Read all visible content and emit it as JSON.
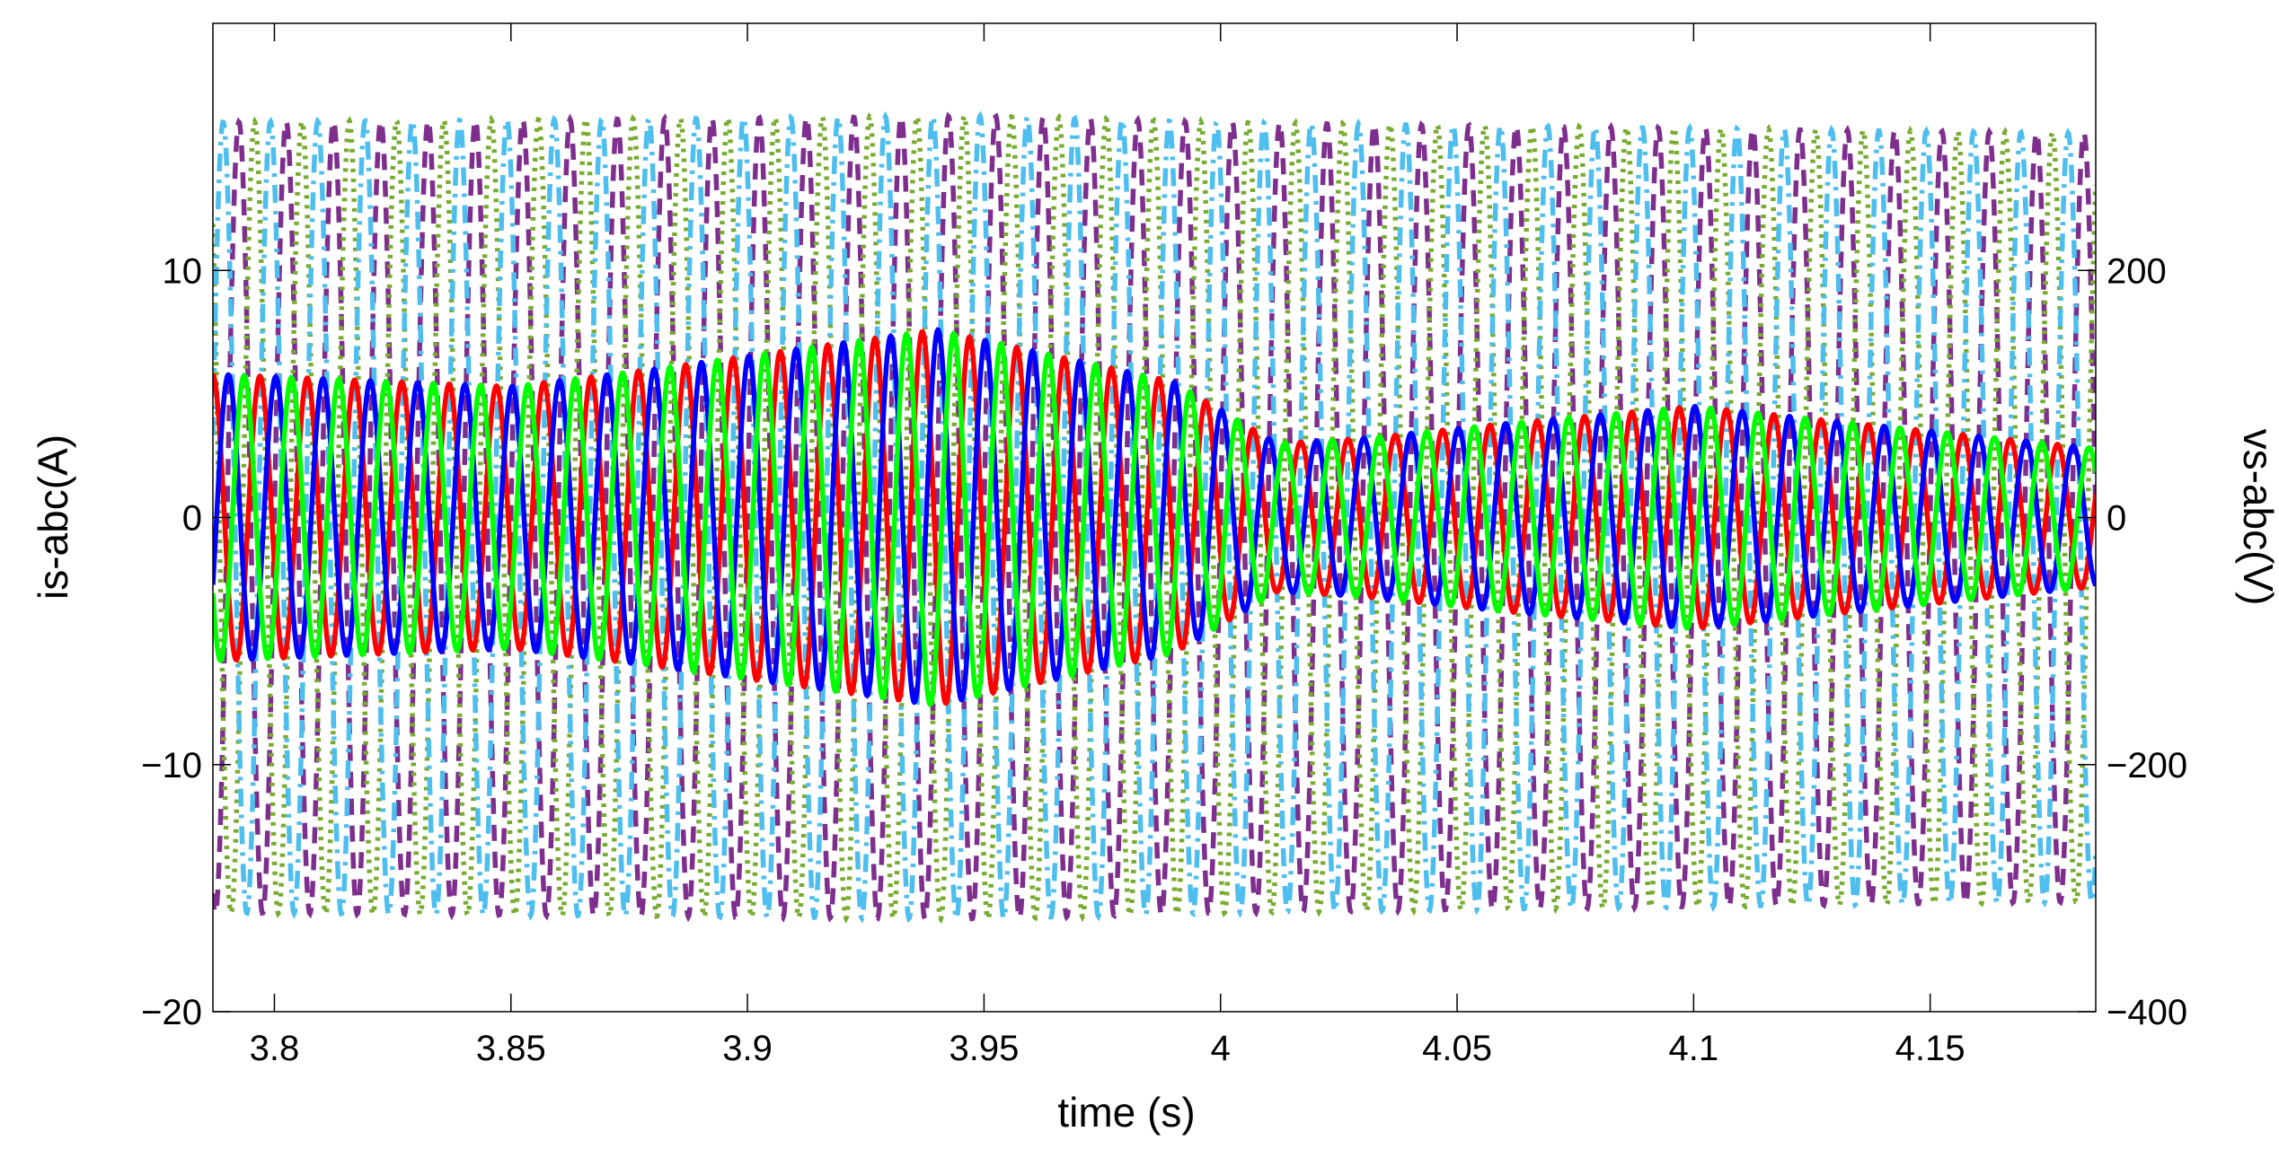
{
  "chart_data": {
    "type": "line",
    "title": "",
    "xlabel": "time (s)",
    "ylabel_left": "is-abc(A)",
    "ylabel_right": "vs-abc(V)",
    "xlim": [
      3.787,
      4.185
    ],
    "ylim_left": [
      -20,
      20
    ],
    "ylim_right": [
      -400,
      400
    ],
    "xticks": [
      3.8,
      3.85,
      3.9,
      3.95,
      4,
      4.05,
      4.1,
      4.15
    ],
    "xtick_labels": [
      "3.8",
      "3.85",
      "3.9",
      "3.95",
      "4",
      "4.05",
      "4.1",
      "4.15"
    ],
    "yticks_left": [
      -20,
      -10,
      0,
      10
    ],
    "ytick_labels_left": [
      "−20",
      "−10",
      "0",
      "10"
    ],
    "yticks_right": [
      -400,
      -200,
      0,
      200
    ],
    "ytick_labels_right": [
      "−400",
      "−200",
      "0",
      "200"
    ],
    "grid": false,
    "legend": "none",
    "frequency_hz": 100,
    "voltage_series": [
      {
        "axis": "right",
        "phase_deg": 0,
        "style": "dash",
        "color": "#7E2F8E",
        "amplitude_envelope": {
          "t": [
            3.787,
            3.95,
            4.0,
            4.185
          ],
          "value": [
            320,
            325,
            320,
            311
          ]
        }
      },
      {
        "axis": "right",
        "phase_deg": -120,
        "style": "dot",
        "color": "#77AC30",
        "amplitude_envelope": {
          "t": [
            3.787,
            3.95,
            4.0,
            4.185
          ],
          "value": [
            320,
            325,
            320,
            311
          ]
        }
      },
      {
        "axis": "right",
        "phase_deg": 120,
        "style": "dashdot",
        "color": "#4DBEEE",
        "amplitude_envelope": {
          "t": [
            3.787,
            3.95,
            4.0,
            4.185
          ],
          "value": [
            320,
            325,
            320,
            311
          ]
        }
      }
    ],
    "current_series": [
      {
        "axis": "left",
        "phase_deg": 200,
        "style": "solid",
        "color": "#FF0000",
        "amplitude_envelope": {
          "t": [
            3.787,
            3.85,
            3.88,
            3.94,
            3.99,
            4.012,
            4.03,
            4.06,
            4.1,
            4.185
          ],
          "value": [
            5.8,
            5.3,
            6.0,
            7.6,
            5.5,
            3.0,
            3.2,
            3.8,
            4.5,
            2.8
          ]
        }
      },
      {
        "axis": "left",
        "phase_deg": 80,
        "style": "solid",
        "color": "#0000FF",
        "amplitude_envelope": {
          "t": [
            3.787,
            3.85,
            3.88,
            3.94,
            3.99,
            4.012,
            4.03,
            4.06,
            4.1,
            4.185
          ],
          "value": [
            5.8,
            5.3,
            6.0,
            7.6,
            5.5,
            3.0,
            3.2,
            3.8,
            4.5,
            2.8
          ]
        }
      },
      {
        "axis": "left",
        "phase_deg": -40,
        "style": "solid",
        "color": "#00FF00",
        "amplitude_envelope": {
          "t": [
            3.787,
            3.85,
            3.88,
            3.94,
            3.99,
            4.012,
            4.03,
            4.06,
            4.1,
            4.185
          ],
          "value": [
            5.8,
            5.3,
            6.0,
            7.6,
            5.5,
            3.0,
            3.2,
            3.8,
            4.5,
            2.8
          ]
        }
      }
    ]
  }
}
